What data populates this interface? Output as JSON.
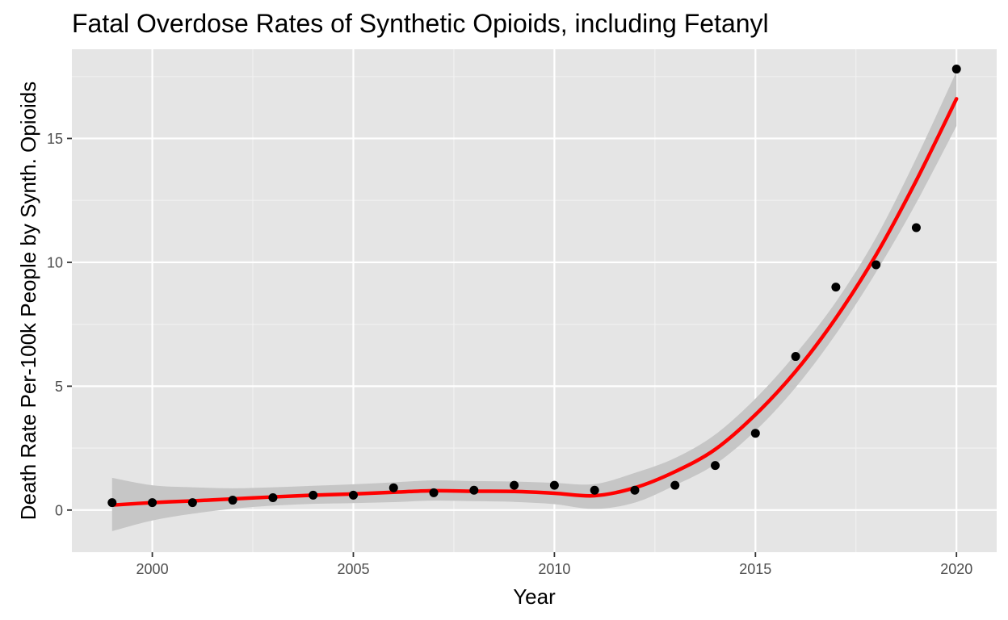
{
  "chart_data": {
    "type": "scatter",
    "title": "Fatal Overdose Rates of Synthetic Opioids, including Fetanyl",
    "xlabel": "Year",
    "ylabel": "Death Rate Per-100k People by Synth. Opioids",
    "xlim": [
      1998.0,
      2021.0
    ],
    "ylim": [
      -1.7,
      18.6
    ],
    "x_ticks": [
      2000,
      2005,
      2010,
      2015,
      2020
    ],
    "x_tick_labels": [
      "2000",
      "2005",
      "2010",
      "2015",
      "2020"
    ],
    "y_ticks": [
      0,
      5,
      10,
      15
    ],
    "y_tick_labels": [
      "0",
      "5",
      "10",
      "15"
    ],
    "grid": true,
    "background": "#e5e5e5",
    "point_color": "#000000",
    "trend_color": "#ff0000",
    "band_color": "#c6c6c6",
    "points": {
      "x": [
        1999,
        2000,
        2001,
        2002,
        2003,
        2004,
        2005,
        2006,
        2007,
        2008,
        2009,
        2010,
        2011,
        2012,
        2013,
        2014,
        2015,
        2016,
        2017,
        2018,
        2019,
        2020
      ],
      "y": [
        0.3,
        0.3,
        0.3,
        0.4,
        0.5,
        0.6,
        0.6,
        0.9,
        0.7,
        0.8,
        1.0,
        1.0,
        0.8,
        0.8,
        1.0,
        1.8,
        3.1,
        6.2,
        9.0,
        9.9,
        11.4,
        17.8
      ]
    },
    "trend": {
      "x": [
        1999,
        2000,
        2001,
        2002,
        2003,
        2004,
        2005,
        2006,
        2007,
        2008,
        2009,
        2010,
        2011,
        2012,
        2013,
        2014,
        2015,
        2016,
        2017,
        2018,
        2019,
        2020
      ],
      "y": [
        0.2,
        0.3,
        0.37,
        0.45,
        0.53,
        0.6,
        0.65,
        0.72,
        0.78,
        0.76,
        0.75,
        0.68,
        0.58,
        0.9,
        1.55,
        2.45,
        3.85,
        5.6,
        7.75,
        10.3,
        13.3,
        16.6
      ],
      "lower": [
        -0.85,
        -0.42,
        -0.15,
        0.05,
        0.18,
        0.25,
        0.28,
        0.32,
        0.38,
        0.36,
        0.33,
        0.24,
        0.05,
        0.3,
        1.0,
        1.85,
        3.2,
        4.95,
        7.1,
        9.6,
        12.4,
        15.5
      ],
      "upper": [
        1.3,
        1.0,
        0.92,
        0.88,
        0.92,
        0.98,
        1.04,
        1.12,
        1.2,
        1.17,
        1.15,
        1.1,
        1.05,
        1.5,
        2.1,
        3.05,
        4.5,
        6.3,
        8.4,
        11.0,
        14.2,
        17.7
      ]
    }
  }
}
